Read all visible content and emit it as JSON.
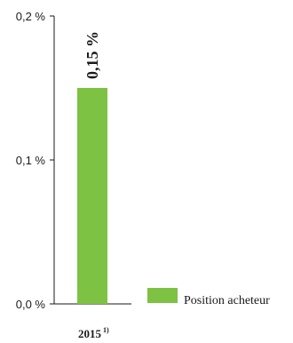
{
  "chart_data": {
    "type": "bar",
    "categories": [
      "2015"
    ],
    "category_superscripts": [
      "1)"
    ],
    "series": [
      {
        "name": "Position acheteur",
        "values": [
          0.15
        ],
        "color": "#7dc242"
      }
    ],
    "data_labels": [
      "0,15 %"
    ],
    "yticks": [
      0.0,
      0.1,
      0.2
    ],
    "ytick_labels": [
      "0,0 %",
      "0,1 %",
      "0,2 %"
    ],
    "ylim": [
      0,
      0.2
    ],
    "grid": false,
    "legend_position": "bottom-right",
    "title": "",
    "xlabel": "",
    "ylabel": ""
  }
}
